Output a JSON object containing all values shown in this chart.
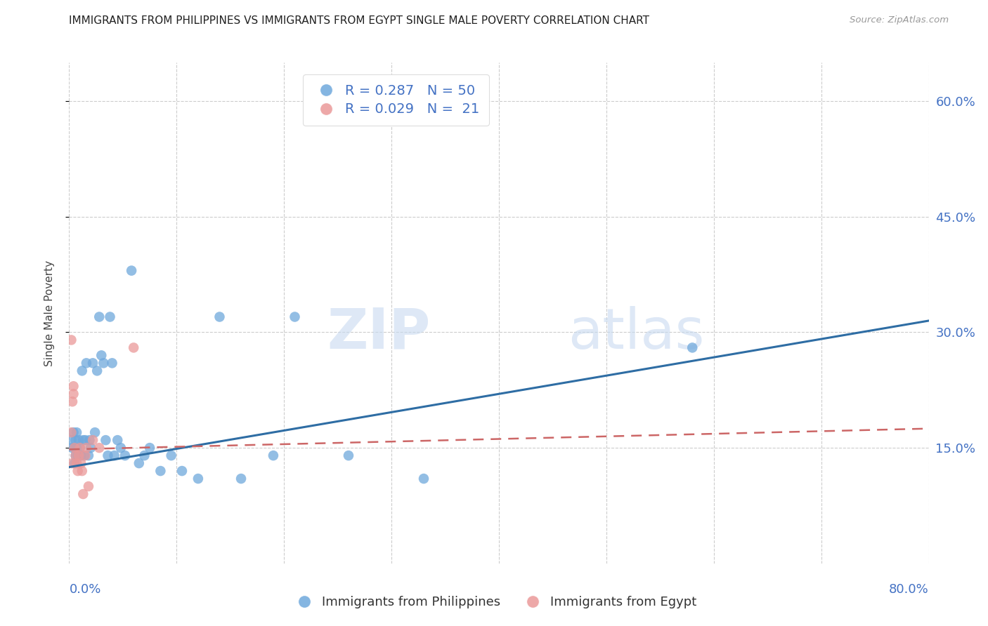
{
  "title": "IMMIGRANTS FROM PHILIPPINES VS IMMIGRANTS FROM EGYPT SINGLE MALE POVERTY CORRELATION CHART",
  "source": "Source: ZipAtlas.com",
  "ylabel": "Single Male Poverty",
  "xlim": [
    0.0,
    0.8
  ],
  "ylim": [
    0.0,
    0.65
  ],
  "yticks": [
    0.15,
    0.3,
    0.45,
    0.6
  ],
  "ytick_labels": [
    "15.0%",
    "30.0%",
    "45.0%",
    "60.0%"
  ],
  "xticks": [
    0.0,
    0.1,
    0.2,
    0.3,
    0.4,
    0.5,
    0.6,
    0.7,
    0.8
  ],
  "philippines_color": "#6fa8dc",
  "egypt_color": "#ea9999",
  "trend_philippines_color": "#2e6da4",
  "trend_egypt_color": "#cc6666",
  "philippines_R": 0.287,
  "philippines_N": 50,
  "egypt_R": 0.029,
  "egypt_N": 21,
  "watermark_zip": "ZIP",
  "watermark_atlas": "atlas",
  "philippines_x": [
    0.002,
    0.003,
    0.004,
    0.005,
    0.005,
    0.006,
    0.006,
    0.007,
    0.007,
    0.008,
    0.009,
    0.01,
    0.011,
    0.012,
    0.013,
    0.014,
    0.015,
    0.016,
    0.018,
    0.019,
    0.02,
    0.022,
    0.024,
    0.026,
    0.028,
    0.03,
    0.032,
    0.034,
    0.036,
    0.038,
    0.04,
    0.042,
    0.045,
    0.048,
    0.052,
    0.058,
    0.065,
    0.07,
    0.075,
    0.085,
    0.095,
    0.105,
    0.12,
    0.14,
    0.16,
    0.19,
    0.21,
    0.26,
    0.33,
    0.58
  ],
  "philippines_y": [
    0.16,
    0.15,
    0.17,
    0.15,
    0.13,
    0.16,
    0.14,
    0.15,
    0.17,
    0.14,
    0.16,
    0.15,
    0.14,
    0.25,
    0.16,
    0.14,
    0.16,
    0.26,
    0.14,
    0.16,
    0.15,
    0.26,
    0.17,
    0.25,
    0.32,
    0.27,
    0.26,
    0.16,
    0.14,
    0.32,
    0.26,
    0.14,
    0.16,
    0.15,
    0.14,
    0.38,
    0.13,
    0.14,
    0.15,
    0.12,
    0.14,
    0.12,
    0.11,
    0.32,
    0.11,
    0.14,
    0.32,
    0.14,
    0.11,
    0.28
  ],
  "egypt_x": [
    0.002,
    0.002,
    0.003,
    0.003,
    0.004,
    0.004,
    0.005,
    0.006,
    0.007,
    0.008,
    0.009,
    0.01,
    0.011,
    0.012,
    0.013,
    0.015,
    0.016,
    0.018,
    0.022,
    0.028,
    0.06
  ],
  "egypt_y": [
    0.17,
    0.29,
    0.13,
    0.21,
    0.22,
    0.23,
    0.15,
    0.14,
    0.13,
    0.12,
    0.14,
    0.15,
    0.13,
    0.12,
    0.09,
    0.14,
    0.15,
    0.1,
    0.16,
    0.15,
    0.28
  ],
  "phil_trend_x": [
    0.0,
    0.8
  ],
  "phil_trend_y": [
    0.125,
    0.315
  ],
  "egypt_trend_x": [
    0.0,
    0.8
  ],
  "egypt_trend_y": [
    0.148,
    0.175
  ]
}
